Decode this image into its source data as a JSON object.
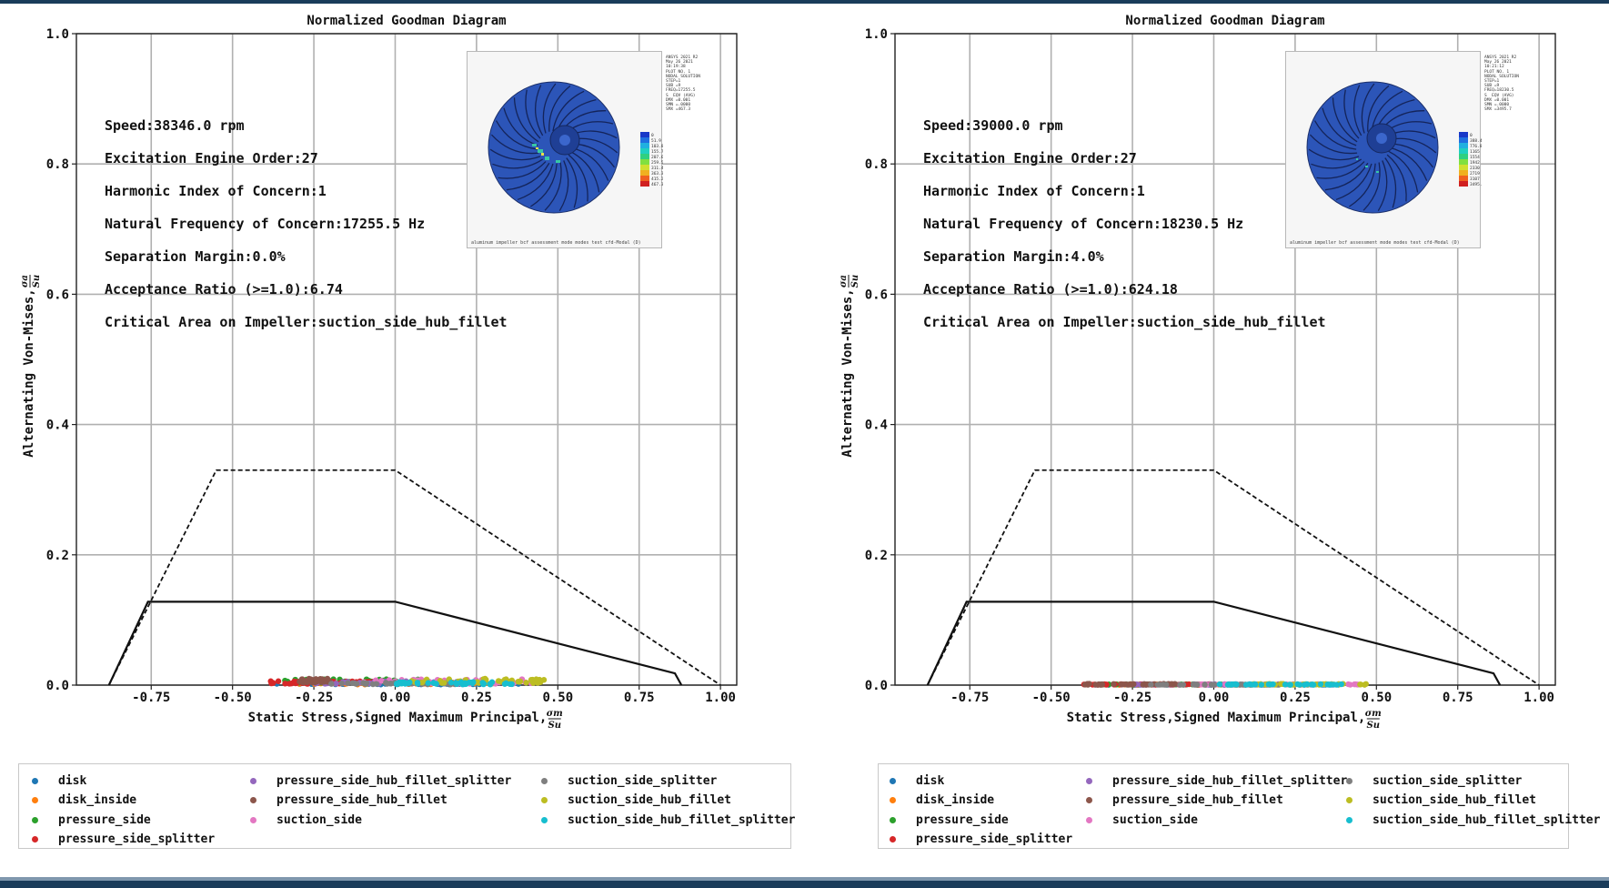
{
  "colors": {
    "frame": "#1a3c5a",
    "disk": "#1f77b4",
    "disk_inside": "#ff7f0e",
    "pressure_side": "#2ca02c",
    "pressure_side_splitter": "#d62728",
    "pressure_side_hub_fillet_splitter": "#9467bd",
    "pressure_side_hub_fillet": "#8c564b",
    "suction_side": "#e377c2",
    "suction_side_splitter": "#7f7f7f",
    "suction_side_hub_fillet": "#bcbd22",
    "suction_side_hub_fillet_splitter": "#17becf"
  },
  "chart_data": [
    {
      "type": "scatter",
      "title": "Normalized Goodman Diagram",
      "xlabel": "Static Stress,Signed Maximum Principal,",
      "xlabel_frac": {
        "num": "σm",
        "den": "Su"
      },
      "ylabel": "Alternating Von-Mises,",
      "ylabel_frac": {
        "num": "σa",
        "den": "Su"
      },
      "xlim": [
        -0.98,
        1.05
      ],
      "ylim": [
        0.0,
        1.0
      ],
      "xticks": [
        "-0.75",
        "-0.50",
        "-0.25",
        "0.00",
        "0.25",
        "0.50",
        "0.75",
        "1.00"
      ],
      "xtick_values": [
        -0.75,
        -0.5,
        -0.25,
        0.0,
        0.25,
        0.5,
        0.75,
        1.0
      ],
      "yticks": [
        "0.0",
        "0.2",
        "0.4",
        "0.6",
        "0.8",
        "1.0"
      ],
      "ytick_values": [
        0.0,
        0.2,
        0.4,
        0.6,
        0.8,
        1.0
      ],
      "grid": true,
      "dashed_envelope": {
        "x": [
          -0.88,
          -0.55,
          0.0,
          1.0
        ],
        "y": [
          0.0,
          0.33,
          0.33,
          0.0
        ]
      },
      "solid_envelope": {
        "x": [
          -0.88,
          -0.76,
          0.0,
          0.86,
          0.88
        ],
        "y": [
          0.0,
          0.128,
          0.128,
          0.018,
          0.0
        ]
      },
      "annotations": [
        "Speed:38346.0 rpm",
        "Excitation Engine Order:27",
        "Harmonic Index of Concern:1",
        "Natural Frequency of Concern:17255.5 Hz",
        "Separation Margin:0.0%",
        "Acceptance Ratio (>=1.0):6.74",
        "Critical Area on Impeller:suction_side_hub_fillet"
      ],
      "series": [
        {
          "name": "disk",
          "x_range": [
            -0.38,
            0.4
          ],
          "y": [
            0.001,
            0.003
          ]
        },
        {
          "name": "disk_inside",
          "x_range": [
            -0.3,
            0.3
          ],
          "y": [
            0.001,
            0.004
          ]
        },
        {
          "name": "pressure_side",
          "x_range": [
            -0.35,
            0.1
          ],
          "y": [
            0.003,
            0.009
          ]
        },
        {
          "name": "pressure_side_splitter",
          "x_range": [
            -0.4,
            0.0
          ],
          "y": [
            0.002,
            0.006
          ]
        },
        {
          "name": "pressure_side_hub_fillet_splitter",
          "x_range": [
            -0.25,
            0.2
          ],
          "y": [
            0.002,
            0.006
          ]
        },
        {
          "name": "pressure_side_hub_fillet",
          "x_range": [
            -0.3,
            -0.2
          ],
          "y": [
            0.004,
            0.01
          ]
        },
        {
          "name": "suction_side",
          "x_range": [
            -0.1,
            0.45
          ],
          "y": [
            0.002,
            0.009
          ]
        },
        {
          "name": "suction_side_splitter",
          "x_range": [
            -0.2,
            0.2
          ],
          "y": [
            0.001,
            0.004
          ]
        },
        {
          "name": "suction_side_hub_fillet",
          "x_range": [
            0.05,
            0.47
          ],
          "y": [
            0.003,
            0.01
          ]
        },
        {
          "name": "suction_side_hub_fillet_splitter",
          "x_range": [
            0.0,
            0.4
          ],
          "y": [
            0.001,
            0.005
          ]
        }
      ]
    },
    {
      "type": "scatter",
      "title": "Normalized Goodman Diagram",
      "xlabel": "Static Stress,Signed Maximum Principal,",
      "xlabel_frac": {
        "num": "σm",
        "den": "Su"
      },
      "ylabel": "Alternating Von-Mises,",
      "ylabel_frac": {
        "num": "σa",
        "den": "Su"
      },
      "xlim": [
        -0.98,
        1.05
      ],
      "ylim": [
        0.0,
        1.0
      ],
      "xticks": [
        "-0.75",
        "-0.50",
        "-0.25",
        "0.00",
        "0.25",
        "0.50",
        "0.75",
        "1.00"
      ],
      "xtick_values": [
        -0.75,
        -0.5,
        -0.25,
        0.0,
        0.25,
        0.5,
        0.75,
        1.0
      ],
      "yticks": [
        "0.0",
        "0.2",
        "0.4",
        "0.6",
        "0.8",
        "1.0"
      ],
      "ytick_values": [
        0.0,
        0.2,
        0.4,
        0.6,
        0.8,
        1.0
      ],
      "grid": true,
      "dashed_envelope": {
        "x": [
          -0.88,
          -0.55,
          0.0,
          1.0
        ],
        "y": [
          0.0,
          0.33,
          0.33,
          0.0
        ]
      },
      "solid_envelope": {
        "x": [
          -0.88,
          -0.76,
          0.0,
          0.86,
          0.88
        ],
        "y": [
          0.0,
          0.128,
          0.128,
          0.018,
          0.0
        ]
      },
      "annotations": [
        "Speed:39000.0 rpm",
        "Excitation Engine Order:27",
        "Harmonic Index of Concern:1",
        "Natural Frequency of Concern:18230.5 Hz",
        "Separation Margin:4.0%",
        "Acceptance Ratio (>=1.0):624.18",
        "Critical Area on Impeller:suction_side_hub_fillet"
      ],
      "series": [
        {
          "name": "disk",
          "x_range": [
            -0.38,
            0.4
          ],
          "y": [
            0.0005,
            0.001
          ]
        },
        {
          "name": "disk_inside",
          "x_range": [
            -0.3,
            0.3
          ],
          "y": [
            0.0005,
            0.001
          ]
        },
        {
          "name": "pressure_side",
          "x_range": [
            -0.35,
            0.1
          ],
          "y": [
            0.0005,
            0.0015
          ]
        },
        {
          "name": "pressure_side_splitter",
          "x_range": [
            -0.4,
            0.0
          ],
          "y": [
            0.0005,
            0.0015
          ]
        },
        {
          "name": "pressure_side_hub_fillet_splitter",
          "x_range": [
            -0.25,
            0.2
          ],
          "y": [
            0.0005,
            0.0015
          ]
        },
        {
          "name": "pressure_side_hub_fillet",
          "x_range": [
            -0.4,
            -0.1
          ],
          "y": [
            0.0005,
            0.002
          ]
        },
        {
          "name": "suction_side",
          "x_range": [
            -0.1,
            0.45
          ],
          "y": [
            0.0005,
            0.0015
          ]
        },
        {
          "name": "suction_side_splitter",
          "x_range": [
            -0.2,
            0.2
          ],
          "y": [
            0.0005,
            0.001
          ]
        },
        {
          "name": "suction_side_hub_fillet",
          "x_range": [
            0.05,
            0.47
          ],
          "y": [
            0.0005,
            0.002
          ]
        },
        {
          "name": "suction_side_hub_fillet_splitter",
          "x_range": [
            0.0,
            0.4
          ],
          "y": [
            0.0005,
            0.0015
          ]
        }
      ]
    }
  ],
  "legend": {
    "left_columns": [
      [
        "disk",
        "disk_inside",
        "pressure_side",
        "pressure_side_splitter"
      ],
      [
        "pressure_side_hub_fillet_splitter",
        "pressure_side_hub_fillet",
        "suction_side"
      ],
      [
        "suction_side_splitter",
        "suction_side_hub_fillet",
        "suction_side_hub_fillet_splitter"
      ]
    ],
    "right_columns": [
      [
        "disk",
        "disk_inside",
        "pressure_side",
        "pressure_side_splitter"
      ],
      [
        "pressure_side_hub_fillet_splitter",
        "pressure_side_hub_fillet",
        "suction_side"
      ],
      [
        "suction_side_splitter",
        "suction_side_hub_fillet",
        "suction_side_hub_fillet_splitter"
      ]
    ]
  },
  "insets": [
    {
      "caption": "aluminum impeller bcf assessment mode modes test cfd-Modal (D)",
      "legend_text": "ANSYS 2021 R2\nMay 26 2021\n10:19:38\nPLOT NO. 1\nNODAL SOLUTION\nSTEP=1\nSUB =9\nFREQ=17255.5\nS  EQV (AVG)\nDMX =0.001\nSMN =.0000\nSMX =467.3",
      "legend_values": [
        "0",
        "51.9",
        "103.8",
        "155.7",
        "207.6",
        "259.5",
        "311.4",
        "363.3",
        "415.2",
        "467.3"
      ]
    },
    {
      "caption": "aluminum impeller bcf assessment mode modes test cfd-Modal (D)",
      "legend_text": "ANSYS 2021 R2\nMay 26 2021\n10:21:12\nPLOT NO. 1\nNODAL SOLUTION\nSTEP=1\nSUB =9\nFREQ=18230.5\nS  EQV (AVG)\nDMX =0.001\nSMN =.0000\nSMX =3495.7",
      "legend_values": [
        "0",
        "388.4",
        "776.8",
        "1165",
        "1554",
        "1942",
        "2330",
        "2719",
        "3107",
        "3495.7"
      ]
    }
  ]
}
